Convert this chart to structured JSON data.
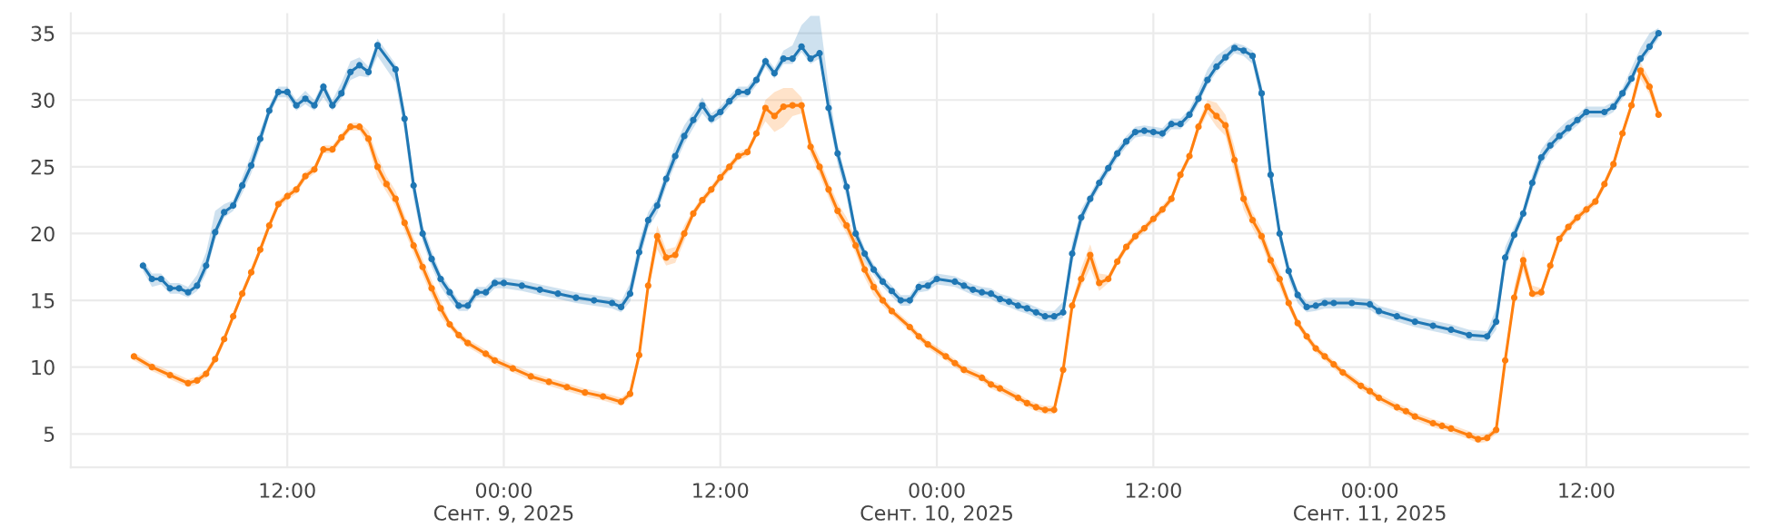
{
  "chart_data": {
    "type": "line",
    "marker": "circle",
    "line_style": "solid",
    "grid": true,
    "xlim": [
      "2025-09-08T00:00",
      "2025-09-11T21:00"
    ],
    "ylim": [
      2.5,
      36.5
    ],
    "yticks": [
      5,
      10,
      15,
      20,
      25,
      30,
      35
    ],
    "xticks": [
      {
        "value": "2025-09-08T12:00",
        "label": "12:00"
      },
      {
        "value": "2025-09-09T00:00",
        "label": "00:00\nСент. 9, 2025"
      },
      {
        "value": "2025-09-09T12:00",
        "label": "12:00"
      },
      {
        "value": "2025-09-10T00:00",
        "label": "00:00\nСент. 10, 2025"
      },
      {
        "value": "2025-09-10T12:00",
        "label": "12:00"
      },
      {
        "value": "2025-09-11T00:00",
        "label": "00:00\nСент. 11, 2025"
      },
      {
        "value": "2025-09-11T12:00",
        "label": "12:00"
      }
    ],
    "series": [
      {
        "color": "#1f77b4",
        "x": [
          "2025-09-08T04:00",
          "2025-09-08T04:30",
          "2025-09-08T05:00",
          "2025-09-08T05:30",
          "2025-09-08T06:00",
          "2025-09-08T06:30",
          "2025-09-08T07:00",
          "2025-09-08T07:30",
          "2025-09-08T08:00",
          "2025-09-08T08:30",
          "2025-09-08T09:00",
          "2025-09-08T09:30",
          "2025-09-08T10:00",
          "2025-09-08T10:30",
          "2025-09-08T11:00",
          "2025-09-08T11:30",
          "2025-09-08T12:00",
          "2025-09-08T12:30",
          "2025-09-08T13:00",
          "2025-09-08T13:30",
          "2025-09-08T14:00",
          "2025-09-08T14:30",
          "2025-09-08T15:00",
          "2025-09-08T15:30",
          "2025-09-08T16:00",
          "2025-09-08T16:30",
          "2025-09-08T17:00",
          "2025-09-08T18:00",
          "2025-09-08T18:30",
          "2025-09-08T19:00",
          "2025-09-08T19:30",
          "2025-09-08T20:00",
          "2025-09-08T20:30",
          "2025-09-08T21:00",
          "2025-09-08T21:30",
          "2025-09-08T22:00",
          "2025-09-08T22:30",
          "2025-09-08T23:00",
          "2025-09-08T23:30",
          "2025-09-09T00:00",
          "2025-09-09T01:00",
          "2025-09-09T02:00",
          "2025-09-09T03:00",
          "2025-09-09T04:00",
          "2025-09-09T05:00",
          "2025-09-09T06:00",
          "2025-09-09T06:30",
          "2025-09-09T07:00",
          "2025-09-09T07:30",
          "2025-09-09T08:00",
          "2025-09-09T08:30",
          "2025-09-09T09:00",
          "2025-09-09T09:30",
          "2025-09-09T10:00",
          "2025-09-09T10:30",
          "2025-09-09T11:00",
          "2025-09-09T11:30",
          "2025-09-09T12:00",
          "2025-09-09T12:30",
          "2025-09-09T13:00",
          "2025-09-09T13:30",
          "2025-09-09T14:00",
          "2025-09-09T14:30",
          "2025-09-09T15:00",
          "2025-09-09T15:30",
          "2025-09-09T16:00",
          "2025-09-09T16:30",
          "2025-09-09T17:00",
          "2025-09-09T17:30",
          "2025-09-09T18:00",
          "2025-09-09T18:30",
          "2025-09-09T19:00",
          "2025-09-09T19:30",
          "2025-09-09T20:00",
          "2025-09-09T20:30",
          "2025-09-09T21:00",
          "2025-09-09T21:30",
          "2025-09-09T22:00",
          "2025-09-09T22:30",
          "2025-09-09T23:00",
          "2025-09-09T23:30",
          "2025-09-10T00:00",
          "2025-09-10T01:00",
          "2025-09-10T01:30",
          "2025-09-10T02:00",
          "2025-09-10T02:30",
          "2025-09-10T03:00",
          "2025-09-10T03:30",
          "2025-09-10T04:00",
          "2025-09-10T04:30",
          "2025-09-10T05:00",
          "2025-09-10T05:30",
          "2025-09-10T06:00",
          "2025-09-10T06:30",
          "2025-09-10T07:00",
          "2025-09-10T07:30",
          "2025-09-10T08:00",
          "2025-09-10T08:30",
          "2025-09-10T09:00",
          "2025-09-10T09:30",
          "2025-09-10T10:00",
          "2025-09-10T10:30",
          "2025-09-10T11:00",
          "2025-09-10T11:30",
          "2025-09-10T12:00",
          "2025-09-10T12:30",
          "2025-09-10T13:00",
          "2025-09-10T13:30",
          "2025-09-10T14:00",
          "2025-09-10T14:30",
          "2025-09-10T15:00",
          "2025-09-10T15:30",
          "2025-09-10T16:00",
          "2025-09-10T16:30",
          "2025-09-10T17:00",
          "2025-09-10T17:30",
          "2025-09-10T18:00",
          "2025-09-10T18:30",
          "2025-09-10T19:00",
          "2025-09-10T19:30",
          "2025-09-10T20:00",
          "2025-09-10T20:30",
          "2025-09-10T21:00",
          "2025-09-10T21:30",
          "2025-09-10T22:00",
          "2025-09-10T23:00",
          "2025-09-11T00:00",
          "2025-09-11T00:30",
          "2025-09-11T01:30",
          "2025-09-11T02:30",
          "2025-09-11T03:30",
          "2025-09-11T04:30",
          "2025-09-11T05:30",
          "2025-09-11T06:30",
          "2025-09-11T07:00",
          "2025-09-11T07:30",
          "2025-09-11T08:00",
          "2025-09-11T08:30",
          "2025-09-11T09:00",
          "2025-09-11T09:30",
          "2025-09-11T10:00",
          "2025-09-11T10:30",
          "2025-09-11T11:00",
          "2025-09-11T11:30",
          "2025-09-11T12:00",
          "2025-09-11T13:00",
          "2025-09-11T13:30",
          "2025-09-11T14:00",
          "2025-09-11T14:30",
          "2025-09-11T15:00",
          "2025-09-11T15:30",
          "2025-09-11T16:00"
        ],
        "values": [
          17.6,
          16.6,
          16.6,
          15.9,
          15.9,
          15.6,
          16.1,
          17.6,
          20.1,
          21.6,
          22.1,
          23.6,
          25.1,
          27.1,
          29.2,
          30.6,
          30.6,
          29.6,
          30.1,
          29.6,
          31.0,
          29.6,
          30.5,
          32.1,
          32.6,
          32.1,
          34.1,
          32.3,
          28.6,
          23.6,
          20.0,
          18.1,
          16.6,
          15.6,
          14.6,
          14.6,
          15.6,
          15.6,
          16.3,
          16.3,
          16.1,
          15.8,
          15.5,
          15.2,
          15.0,
          14.8,
          14.5,
          15.5,
          18.6,
          21.0,
          22.1,
          24.1,
          25.8,
          27.3,
          28.5,
          29.6,
          28.6,
          29.1,
          29.9,
          30.6,
          30.6,
          31.5,
          32.9,
          32.0,
          33.1,
          33.1,
          34.0,
          33.1,
          33.5,
          29.4,
          26.0,
          23.5,
          20.0,
          18.5,
          17.3,
          16.4,
          15.7,
          15.0,
          15.0,
          16.0,
          16.1,
          16.6,
          16.4,
          16.1,
          15.8,
          15.6,
          15.5,
          15.1,
          14.9,
          14.6,
          14.4,
          14.1,
          13.8,
          13.8,
          14.1,
          18.5,
          21.2,
          22.6,
          23.8,
          24.9,
          26.0,
          26.9,
          27.6,
          27.7,
          27.6,
          27.5,
          28.2,
          28.2,
          28.9,
          30.1,
          31.5,
          32.5,
          33.2,
          33.9,
          33.7,
          33.3,
          30.5,
          24.4,
          20.0,
          17.2,
          15.4,
          14.5,
          14.6,
          14.8,
          14.8,
          14.8,
          14.7,
          14.2,
          13.8,
          13.4,
          13.1,
          12.8,
          12.4,
          12.3,
          13.4,
          18.2,
          19.9,
          21.5,
          23.8,
          25.7,
          26.6,
          27.3,
          27.9,
          28.5,
          29.1,
          29.1,
          29.5,
          30.5,
          31.6,
          33.1,
          34.0,
          35.0
        ],
        "lower": [
          17.2,
          16.0,
          16.2,
          15.5,
          15.5,
          15.2,
          15.7,
          17.0,
          19.5,
          21.2,
          21.7,
          23.0,
          24.5,
          26.5,
          28.8,
          30.2,
          30.2,
          29.2,
          29.7,
          29.2,
          30.2,
          29.2,
          30.1,
          31.5,
          31.8,
          31.7,
          33.3,
          31.3,
          27.6,
          22.6,
          19.4,
          17.5,
          16.0,
          15.0,
          14.2,
          14.2,
          15.2,
          15.2,
          15.9,
          15.9,
          15.7,
          15.4,
          15.1,
          14.8,
          14.6,
          14.4,
          14.1,
          14.9,
          17.8,
          20.4,
          21.5,
          23.5,
          25.2,
          26.7,
          27.9,
          29.0,
          28.2,
          28.7,
          29.5,
          30.2,
          30.2,
          31.1,
          32.5,
          31.6,
          32.7,
          32.7,
          33.6,
          32.7,
          33.1,
          28.6,
          25.2,
          22.7,
          19.4,
          17.9,
          16.9,
          16.0,
          15.3,
          14.6,
          14.6,
          15.6,
          15.7,
          16.2,
          16.0,
          15.7,
          15.4,
          15.2,
          15.1,
          14.7,
          14.5,
          14.2,
          14.0,
          13.7,
          13.4,
          13.4,
          13.7,
          17.7,
          20.6,
          22.2,
          23.4,
          24.5,
          25.6,
          26.5,
          27.2,
          27.3,
          27.2,
          27.1,
          27.8,
          27.8,
          28.5,
          29.7,
          31.1,
          32.1,
          32.8,
          33.5,
          33.3,
          32.7,
          29.7,
          23.6,
          19.4,
          16.6,
          14.8,
          14.1,
          14.2,
          14.4,
          14.4,
          14.4,
          14.3,
          13.8,
          13.4,
          13.0,
          12.7,
          12.4,
          12.0,
          11.9,
          12.8,
          17.4,
          19.5,
          21.1,
          23.2,
          25.1,
          26.2,
          26.9,
          27.5,
          28.1,
          28.7,
          28.7,
          29.1,
          30.1,
          31.2,
          32.7,
          33.6,
          34.6
        ],
        "upper": [
          18.0,
          17.0,
          17.0,
          16.3,
          16.3,
          16.0,
          16.9,
          18.6,
          21.7,
          22.2,
          22.5,
          24.2,
          25.9,
          27.7,
          29.6,
          31.0,
          31.0,
          30.0,
          30.7,
          30.0,
          31.4,
          30.0,
          31.3,
          32.9,
          33.2,
          32.5,
          34.6,
          32.7,
          29.2,
          24.2,
          20.6,
          18.7,
          17.0,
          16.0,
          15.0,
          15.0,
          16.0,
          16.0,
          16.7,
          16.7,
          16.5,
          16.2,
          15.9,
          15.6,
          15.4,
          15.2,
          14.9,
          16.3,
          19.4,
          21.6,
          22.7,
          24.7,
          26.6,
          28.1,
          29.1,
          30.2,
          29.0,
          29.5,
          30.3,
          31.0,
          31.0,
          31.9,
          33.3,
          32.4,
          33.7,
          34.1,
          35.6,
          36.3,
          36.3,
          31.0,
          26.6,
          24.1,
          20.6,
          18.9,
          17.7,
          16.8,
          16.1,
          15.4,
          15.4,
          16.4,
          16.5,
          17.0,
          16.8,
          16.5,
          16.2,
          16.0,
          15.9,
          15.5,
          15.3,
          15.0,
          14.8,
          14.5,
          14.2,
          14.2,
          14.9,
          19.3,
          21.8,
          23.0,
          24.2,
          25.3,
          26.4,
          27.3,
          28.0,
          28.1,
          28.0,
          27.9,
          28.6,
          28.6,
          29.3,
          30.7,
          32.3,
          33.3,
          33.8,
          34.3,
          34.1,
          33.7,
          31.1,
          25.2,
          20.6,
          17.6,
          15.8,
          14.9,
          15.0,
          15.2,
          15.2,
          15.2,
          15.1,
          14.6,
          14.2,
          13.8,
          13.5,
          13.2,
          12.8,
          12.7,
          14.4,
          19.0,
          20.5,
          21.9,
          24.4,
          26.3,
          27.2,
          27.9,
          28.5,
          28.9,
          29.5,
          29.5,
          29.9,
          30.9,
          32.4,
          33.9,
          35.0,
          35.4
        ]
      },
      {
        "color": "#ff7f0e",
        "x": [
          "2025-09-08T03:30",
          "2025-09-08T04:30",
          "2025-09-08T05:30",
          "2025-09-08T06:30",
          "2025-09-08T07:00",
          "2025-09-08T07:30",
          "2025-09-08T08:00",
          "2025-09-08T08:30",
          "2025-09-08T09:00",
          "2025-09-08T09:30",
          "2025-09-08T10:00",
          "2025-09-08T10:30",
          "2025-09-08T11:00",
          "2025-09-08T11:30",
          "2025-09-08T12:00",
          "2025-09-08T12:30",
          "2025-09-08T13:00",
          "2025-09-08T13:30",
          "2025-09-08T14:00",
          "2025-09-08T14:30",
          "2025-09-08T15:00",
          "2025-09-08T15:30",
          "2025-09-08T16:00",
          "2025-09-08T16:30",
          "2025-09-08T17:00",
          "2025-09-08T17:30",
          "2025-09-08T18:00",
          "2025-09-08T18:30",
          "2025-09-08T19:00",
          "2025-09-08T19:30",
          "2025-09-08T20:00",
          "2025-09-08T20:30",
          "2025-09-08T21:00",
          "2025-09-08T21:30",
          "2025-09-08T22:00",
          "2025-09-08T23:00",
          "2025-09-08T23:30",
          "2025-09-09T00:30",
          "2025-09-09T01:30",
          "2025-09-09T02:30",
          "2025-09-09T03:30",
          "2025-09-09T04:30",
          "2025-09-09T05:30",
          "2025-09-09T06:30",
          "2025-09-09T07:00",
          "2025-09-09T07:30",
          "2025-09-09T08:00",
          "2025-09-09T08:30",
          "2025-09-09T09:00",
          "2025-09-09T09:30",
          "2025-09-09T10:00",
          "2025-09-09T10:30",
          "2025-09-09T11:00",
          "2025-09-09T11:30",
          "2025-09-09T12:00",
          "2025-09-09T12:30",
          "2025-09-09T13:00",
          "2025-09-09T13:30",
          "2025-09-09T14:00",
          "2025-09-09T14:30",
          "2025-09-09T15:00",
          "2025-09-09T15:30",
          "2025-09-09T16:00",
          "2025-09-09T16:30",
          "2025-09-09T17:00",
          "2025-09-09T17:30",
          "2025-09-09T18:00",
          "2025-09-09T18:30",
          "2025-09-09T19:00",
          "2025-09-09T19:30",
          "2025-09-09T20:00",
          "2025-09-09T20:30",
          "2025-09-09T21:00",
          "2025-09-09T21:30",
          "2025-09-09T22:30",
          "2025-09-09T23:00",
          "2025-09-09T23:30",
          "2025-09-10T00:30",
          "2025-09-10T01:00",
          "2025-09-10T01:30",
          "2025-09-10T02:30",
          "2025-09-10T03:00",
          "2025-09-10T03:30",
          "2025-09-10T04:30",
          "2025-09-10T05:00",
          "2025-09-10T05:30",
          "2025-09-10T06:00",
          "2025-09-10T06:30",
          "2025-09-10T07:00",
          "2025-09-10T07:30",
          "2025-09-10T08:00",
          "2025-09-10T08:30",
          "2025-09-10T09:00",
          "2025-09-10T09:30",
          "2025-09-10T10:00",
          "2025-09-10T10:30",
          "2025-09-10T11:00",
          "2025-09-10T11:30",
          "2025-09-10T12:00",
          "2025-09-10T12:30",
          "2025-09-10T13:00",
          "2025-09-10T13:30",
          "2025-09-10T14:00",
          "2025-09-10T14:30",
          "2025-09-10T15:00",
          "2025-09-10T15:30",
          "2025-09-10T16:00",
          "2025-09-10T16:30",
          "2025-09-10T17:00",
          "2025-09-10T17:30",
          "2025-09-10T18:00",
          "2025-09-10T18:30",
          "2025-09-10T19:00",
          "2025-09-10T19:30",
          "2025-09-10T20:00",
          "2025-09-10T20:30",
          "2025-09-10T21:00",
          "2025-09-10T21:30",
          "2025-09-10T22:00",
          "2025-09-10T22:30",
          "2025-09-10T23:30",
          "2025-09-11T00:00",
          "2025-09-11T00:30",
          "2025-09-11T01:30",
          "2025-09-11T02:00",
          "2025-09-11T02:30",
          "2025-09-11T03:30",
          "2025-09-11T04:00",
          "2025-09-11T04:30",
          "2025-09-11T05:30",
          "2025-09-11T06:00",
          "2025-09-11T06:30",
          "2025-09-11T07:00",
          "2025-09-11T07:30",
          "2025-09-11T08:00",
          "2025-09-11T08:30",
          "2025-09-11T09:00",
          "2025-09-11T09:30",
          "2025-09-11T10:00",
          "2025-09-11T10:30",
          "2025-09-11T11:00",
          "2025-09-11T11:30",
          "2025-09-11T12:00",
          "2025-09-11T12:30",
          "2025-09-11T13:00",
          "2025-09-11T13:30",
          "2025-09-11T14:00",
          "2025-09-11T14:30",
          "2025-09-11T15:00",
          "2025-09-11T15:30",
          "2025-09-11T16:00"
        ],
        "values": [
          10.8,
          10.0,
          9.4,
          8.8,
          9.0,
          9.5,
          10.6,
          12.1,
          13.8,
          15.5,
          17.1,
          18.8,
          20.6,
          22.2,
          22.8,
          23.3,
          24.3,
          24.8,
          26.3,
          26.3,
          27.2,
          28.0,
          28.0,
          27.1,
          25.0,
          23.7,
          22.6,
          20.8,
          19.1,
          17.5,
          15.9,
          14.4,
          13.2,
          12.4,
          11.8,
          11.0,
          10.5,
          9.9,
          9.3,
          8.9,
          8.5,
          8.1,
          7.8,
          7.4,
          8.0,
          10.9,
          16.1,
          19.8,
          18.2,
          18.4,
          20.0,
          21.5,
          22.5,
          23.3,
          24.2,
          25.0,
          25.8,
          26.1,
          27.5,
          29.4,
          28.8,
          29.5,
          29.6,
          29.6,
          26.5,
          25.0,
          23.3,
          21.7,
          20.6,
          19.1,
          17.3,
          16.0,
          15.0,
          14.2,
          13.0,
          12.3,
          11.7,
          10.8,
          10.3,
          9.8,
          9.2,
          8.7,
          8.4,
          7.7,
          7.3,
          7.0,
          6.8,
          6.8,
          9.8,
          14.6,
          16.6,
          18.4,
          16.3,
          16.6,
          17.9,
          19.0,
          19.8,
          20.4,
          21.1,
          21.8,
          22.6,
          24.4,
          25.8,
          28.0,
          29.5,
          28.8,
          28.1,
          25.5,
          22.6,
          21.0,
          19.8,
          18.0,
          16.6,
          14.8,
          13.3,
          12.3,
          11.4,
          10.8,
          10.2,
          9.6,
          8.6,
          8.2,
          7.7,
          7.0,
          6.7,
          6.3,
          5.8,
          5.6,
          5.4,
          4.9,
          4.6,
          4.7,
          5.3,
          10.5,
          15.2,
          18.0,
          15.5,
          15.6,
          17.6,
          19.6,
          20.5,
          21.2,
          21.8,
          22.4,
          23.7,
          25.2,
          27.5,
          29.6,
          32.2,
          31.0,
          28.9
        ],
        "lower": [
          10.5,
          9.7,
          9.1,
          8.5,
          8.7,
          9.2,
          10.3,
          11.8,
          13.5,
          15.2,
          16.8,
          18.5,
          20.3,
          21.9,
          22.5,
          23.0,
          24.0,
          24.5,
          26.0,
          26.0,
          26.9,
          27.7,
          27.7,
          26.5,
          24.2,
          23.1,
          22.0,
          20.2,
          18.5,
          16.9,
          15.3,
          13.8,
          12.9,
          12.1,
          11.5,
          10.7,
          10.2,
          9.6,
          9.0,
          8.6,
          8.2,
          7.8,
          7.5,
          7.1,
          7.7,
          10.6,
          15.8,
          18.8,
          17.6,
          17.8,
          19.4,
          21.2,
          22.2,
          23.0,
          23.9,
          24.7,
          25.5,
          25.8,
          27.2,
          28.4,
          27.6,
          28.0,
          28.8,
          29.0,
          25.9,
          24.4,
          22.7,
          21.1,
          20.0,
          18.5,
          16.7,
          15.4,
          14.6,
          13.9,
          12.7,
          12.0,
          11.4,
          10.5,
          10.0,
          9.5,
          8.9,
          8.4,
          8.1,
          7.4,
          7.0,
          6.7,
          6.5,
          6.5,
          9.5,
          14.3,
          16.0,
          17.4,
          15.7,
          16.3,
          17.6,
          18.7,
          19.5,
          20.1,
          20.8,
          21.5,
          22.3,
          24.1,
          25.5,
          27.6,
          29.0,
          28.0,
          27.3,
          24.5,
          21.8,
          20.4,
          19.2,
          17.4,
          16.0,
          14.4,
          13.0,
          12.0,
          11.1,
          10.5,
          9.9,
          9.3,
          8.3,
          7.9,
          7.4,
          6.7,
          6.4,
          6.0,
          5.5,
          5.3,
          5.1,
          4.6,
          4.3,
          4.4,
          5.0,
          10.2,
          14.6,
          17.2,
          15.2,
          15.3,
          17.3,
          19.3,
          20.2,
          20.9,
          21.5,
          22.1,
          23.4,
          24.9,
          27.2,
          29.3,
          31.6,
          30.4,
          28.6
        ],
        "upper": [
          11.1,
          10.3,
          9.7,
          9.1,
          9.3,
          9.8,
          10.9,
          12.4,
          14.1,
          15.8,
          17.4,
          19.1,
          20.9,
          22.5,
          23.1,
          23.6,
          24.6,
          25.1,
          26.6,
          26.6,
          27.5,
          28.3,
          28.3,
          27.7,
          25.8,
          24.3,
          23.2,
          21.4,
          19.7,
          18.1,
          16.5,
          15.0,
          13.5,
          12.7,
          12.1,
          11.3,
          10.8,
          10.2,
          9.6,
          9.2,
          8.8,
          8.4,
          8.1,
          7.7,
          8.3,
          11.2,
          16.4,
          20.6,
          18.8,
          19.0,
          20.6,
          21.8,
          22.8,
          23.6,
          24.5,
          25.3,
          26.1,
          26.4,
          27.8,
          30.0,
          30.6,
          30.9,
          30.9,
          30.2,
          27.1,
          25.6,
          23.9,
          22.3,
          21.2,
          19.7,
          17.9,
          16.6,
          15.4,
          14.5,
          13.3,
          12.6,
          12.0,
          11.1,
          10.6,
          10.1,
          9.5,
          9.0,
          8.7,
          8.0,
          7.6,
          7.3,
          7.1,
          7.1,
          10.1,
          14.9,
          17.4,
          19.2,
          17.0,
          16.9,
          18.2,
          19.3,
          20.1,
          20.7,
          21.4,
          22.1,
          22.9,
          24.7,
          26.1,
          28.4,
          30.0,
          29.8,
          28.9,
          26.5,
          23.4,
          21.6,
          20.4,
          18.6,
          17.2,
          15.2,
          13.6,
          12.6,
          11.7,
          11.1,
          10.5,
          9.9,
          8.9,
          8.5,
          8.0,
          7.3,
          7.0,
          6.6,
          6.1,
          5.9,
          5.7,
          5.2,
          4.9,
          5.0,
          5.6,
          10.8,
          16.0,
          18.8,
          16.1,
          15.9,
          17.9,
          19.9,
          20.8,
          21.5,
          22.1,
          22.7,
          24.0,
          25.5,
          27.8,
          29.9,
          32.8,
          31.6,
          29.4
        ]
      }
    ]
  }
}
